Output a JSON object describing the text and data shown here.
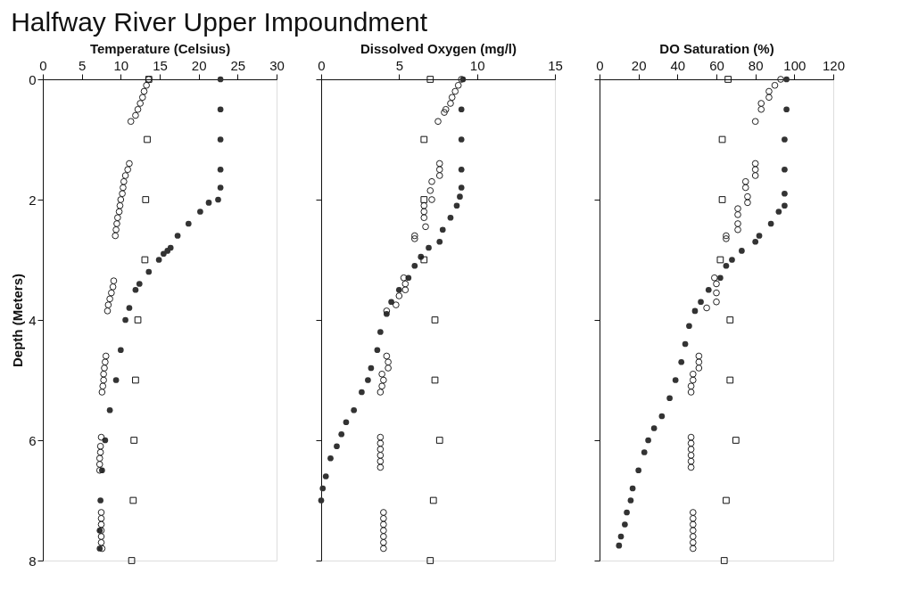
{
  "chart_data": [
    {
      "type": "scatter",
      "title": "Halfway River Upper Impoundment",
      "xlabel": "Temperature (Celsius)",
      "ylabel": "Depth (Meters)",
      "xlim": [
        0,
        30
      ],
      "xticks": [
        0,
        5,
        10,
        15,
        20,
        25,
        30
      ],
      "ylim": [
        8,
        0
      ],
      "yticks": [
        0,
        2,
        4,
        6,
        8
      ],
      "grid": false,
      "series": [
        {
          "color": "#333333",
          "marker": "circle",
          "x": [
            22.8,
            22.8,
            22.8,
            22.8,
            22.8,
            22.5,
            21.3,
            20.2,
            18.7,
            17.3,
            16.4,
            16.0,
            15.5,
            14.9,
            13.6,
            12.4,
            11.9,
            11.1,
            10.6,
            10.0,
            9.4,
            8.6,
            8.0,
            7.6,
            7.4,
            7.3,
            7.3
          ],
          "values": [
            0,
            0.5,
            1,
            1.5,
            1.8,
            2,
            2.05,
            2.2,
            2.4,
            2.6,
            2.8,
            2.85,
            2.9,
            3,
            3.2,
            3.4,
            3.5,
            3.8,
            4,
            4.5,
            5,
            5.5,
            6,
            6.5,
            7,
            7.5,
            7.8
          ]
        },
        {
          "color": "#222222",
          "marker": "circle",
          "x": [
            13.6,
            13.3,
            13.0,
            12.8,
            12.5,
            12.2,
            11.9,
            11.3,
            11.1,
            10.9,
            10.6,
            10.4,
            10.3,
            10.2,
            10.0,
            9.9,
            9.8,
            9.6,
            9.5,
            9.4,
            9.3,
            9.1,
            9.0,
            8.8,
            8.6,
            8.4,
            8.3,
            8.1,
            8.0,
            7.9,
            7.8,
            7.8,
            7.7,
            7.6,
            7.5,
            7.4,
            7.4,
            7.3,
            7.3,
            7.3,
            7.5,
            7.5,
            7.5,
            7.5,
            7.5,
            7.5,
            7.6
          ],
          "values": [
            0,
            0.1,
            0.2,
            0.3,
            0.4,
            0.5,
            0.6,
            0.7,
            1.4,
            1.5,
            1.6,
            1.7,
            1.8,
            1.9,
            2.0,
            2.1,
            2.2,
            2.3,
            2.4,
            2.5,
            2.6,
            3.35,
            3.45,
            3.55,
            3.65,
            3.75,
            3.85,
            4.6,
            4.7,
            4.8,
            4.9,
            5.0,
            5.1,
            5.2,
            5.95,
            6.1,
            6.2,
            6.3,
            6.4,
            6.5,
            7.2,
            7.3,
            7.4,
            7.5,
            7.6,
            7.7,
            7.8
          ]
        },
        {
          "color": "#111111",
          "marker": "square",
          "x": [
            13.6,
            13.4,
            13.2,
            13.1,
            12.2,
            11.9,
            11.7,
            11.6,
            11.4
          ],
          "values": [
            0,
            1,
            2,
            3,
            4,
            5,
            6,
            7,
            8
          ]
        }
      ]
    },
    {
      "type": "scatter",
      "xlabel": "Dissolved Oxygen (mg/l)",
      "xlim": [
        0,
        15
      ],
      "xticks": [
        0,
        5,
        10,
        15
      ],
      "ylim": [
        8,
        0
      ],
      "yticks": [
        0,
        2,
        4,
        6,
        8
      ],
      "tick_labels": "x",
      "grid": false,
      "series": [
        {
          "color": "#333333",
          "marker": "circle",
          "x": [
            9.1,
            9.0,
            9.0,
            9.0,
            9.0,
            8.9,
            8.7,
            8.3,
            7.8,
            7.6,
            6.9,
            6.4,
            6.0,
            5.6,
            5.0,
            4.5,
            4.2,
            3.8,
            3.6,
            3.2,
            3.0,
            2.6,
            2.1,
            1.6,
            1.3,
            1.0,
            0.6,
            0.3,
            0.1,
            0.0
          ],
          "values": [
            0,
            0.5,
            1,
            1.5,
            1.8,
            1.95,
            2.1,
            2.3,
            2.5,
            2.7,
            2.8,
            2.95,
            3.1,
            3.3,
            3.5,
            3.7,
            3.9,
            4.2,
            4.5,
            4.8,
            5,
            5.2,
            5.5,
            5.7,
            5.9,
            6.1,
            6.3,
            6.6,
            6.8,
            7
          ]
        },
        {
          "color": "#222222",
          "marker": "circle",
          "x": [
            9.0,
            8.8,
            8.6,
            8.4,
            8.3,
            8.0,
            7.9,
            7.5,
            7.6,
            7.6,
            7.6,
            7.1,
            7.0,
            7.1,
            6.6,
            6.6,
            6.6,
            6.7,
            6.0,
            6.0,
            5.3,
            5.4,
            5.4,
            5.0,
            4.8,
            4.2,
            4.2,
            4.3,
            4.3,
            3.9,
            4.0,
            3.9,
            3.8,
            3.8,
            3.8,
            3.8,
            3.8,
            3.8,
            3.8,
            4.0,
            4.0,
            4.0,
            4.0,
            4.0,
            4.0,
            4.0
          ],
          "values": [
            0,
            0.1,
            0.2,
            0.3,
            0.4,
            0.5,
            0.55,
            0.7,
            1.4,
            1.5,
            1.6,
            1.7,
            1.85,
            2.0,
            2.1,
            2.2,
            2.3,
            2.45,
            2.6,
            2.65,
            3.3,
            3.4,
            3.5,
            3.6,
            3.75,
            3.85,
            4.6,
            4.7,
            4.8,
            4.9,
            5.0,
            5.1,
            5.2,
            5.95,
            6.05,
            6.15,
            6.25,
            6.35,
            6.45,
            7.2,
            7.3,
            7.4,
            7.5,
            7.6,
            7.7,
            7.8
          ]
        },
        {
          "color": "#111111",
          "marker": "square",
          "x": [
            7.0,
            6.6,
            6.6,
            6.6,
            7.3,
            7.3,
            7.6,
            7.2,
            7.0
          ],
          "values": [
            0,
            1,
            2,
            3,
            4,
            5,
            6,
            7,
            8
          ]
        }
      ]
    },
    {
      "type": "scatter",
      "xlabel": "DO Saturation (%)",
      "xlim": [
        0,
        120
      ],
      "xticks": [
        0,
        20,
        40,
        60,
        80,
        100,
        120
      ],
      "ylim": [
        8,
        0
      ],
      "yticks": [
        0,
        2,
        4,
        6,
        8
      ],
      "tick_labels": "x",
      "grid": false,
      "series": [
        {
          "color": "#333333",
          "marker": "circle",
          "x": [
            96,
            96,
            95,
            95,
            95,
            95,
            92,
            88,
            82,
            80,
            73,
            68,
            65,
            62,
            56,
            52,
            49,
            46,
            44,
            42,
            39,
            36,
            32,
            28,
            25,
            23,
            20,
            17,
            16,
            14,
            13,
            11,
            10
          ],
          "values": [
            0,
            0.5,
            1,
            1.5,
            1.9,
            2.1,
            2.2,
            2.4,
            2.6,
            2.7,
            2.85,
            3,
            3.1,
            3.3,
            3.5,
            3.7,
            3.85,
            4.1,
            4.4,
            4.7,
            5,
            5.3,
            5.6,
            5.8,
            6,
            6.2,
            6.5,
            6.8,
            7,
            7.2,
            7.4,
            7.6,
            7.75
          ]
        },
        {
          "color": "#222222",
          "marker": "circle",
          "x": [
            93,
            90,
            87,
            87,
            83,
            83,
            80,
            80,
            80,
            80,
            75,
            75,
            76,
            76,
            71,
            71,
            71,
            71,
            65,
            65,
            59,
            60,
            60,
            60,
            55,
            51,
            51,
            51,
            48,
            48,
            47,
            47,
            47,
            47,
            47,
            47,
            47,
            47,
            48,
            48,
            48,
            48,
            48,
            48,
            48
          ],
          "values": [
            0,
            0.1,
            0.2,
            0.3,
            0.4,
            0.5,
            0.7,
            1.4,
            1.5,
            1.6,
            1.7,
            1.8,
            1.95,
            2.05,
            2.15,
            2.25,
            2.4,
            2.5,
            2.6,
            2.65,
            3.3,
            3.4,
            3.55,
            3.7,
            3.8,
            4.6,
            4.7,
            4.8,
            4.9,
            5.0,
            5.1,
            5.2,
            5.95,
            6.05,
            6.15,
            6.25,
            6.35,
            6.45,
            7.2,
            7.3,
            7.4,
            7.5,
            7.6,
            7.7,
            7.8
          ]
        },
        {
          "color": "#111111",
          "marker": "square",
          "x": [
            66,
            63,
            63,
            62,
            67,
            67,
            70,
            65,
            64
          ],
          "values": [
            0,
            1,
            2,
            3,
            4,
            5,
            6,
            7,
            8
          ]
        }
      ]
    }
  ]
}
